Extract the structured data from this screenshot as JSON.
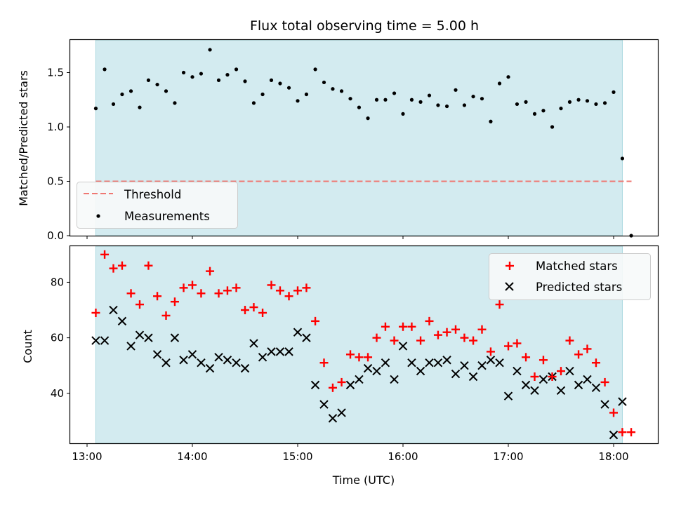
{
  "chart_data": {
    "title": "Flux total observing time = 5.00 h",
    "xlabel": "Time (UTC)",
    "colors": {
      "band": "#d3ebf0",
      "band_edge": "#a9d8de",
      "threshold": "#ef7873",
      "measurement": "#000000",
      "matched": "#ff0000",
      "predicted": "#000000"
    },
    "x_ticks": [
      "13:00",
      "14:00",
      "15:00",
      "16:00",
      "17:00",
      "18:00"
    ],
    "x_tick_hours": [
      13,
      14,
      15,
      16,
      17,
      18
    ],
    "xlim": [
      12.84,
      18.42
    ],
    "observing_band": [
      13.083,
      18.083
    ],
    "times": [
      13.083,
      13.167,
      13.25,
      13.333,
      13.417,
      13.5,
      13.583,
      13.667,
      13.75,
      13.833,
      13.917,
      14.0,
      14.083,
      14.167,
      14.25,
      14.333,
      14.417,
      14.5,
      14.583,
      14.667,
      14.75,
      14.833,
      14.917,
      15.0,
      15.083,
      15.167,
      15.25,
      15.333,
      15.417,
      15.5,
      15.583,
      15.667,
      15.75,
      15.833,
      15.917,
      16.0,
      16.083,
      16.167,
      16.25,
      16.333,
      16.417,
      16.5,
      16.583,
      16.667,
      16.75,
      16.833,
      16.917,
      17.0,
      17.083,
      17.167,
      17.25,
      17.333,
      17.417,
      17.5,
      17.583,
      17.667,
      17.75,
      17.833,
      17.917,
      18.0,
      18.083,
      18.167
    ],
    "top": {
      "ylabel": "Matched/Predicted stars",
      "y_ticks": [
        "0.0",
        "0.5",
        "1.0",
        "1.5"
      ],
      "y_tick_values": [
        0.0,
        0.5,
        1.0,
        1.5
      ],
      "ylim": [
        0.0,
        1.8
      ],
      "threshold": 0.5,
      "threshold_range": [
        13.083,
        18.17
      ],
      "series": [
        {
          "name": "Threshold",
          "type": "line"
        },
        {
          "name": "Measurements",
          "type": "scatter",
          "values": [
            1.17,
            1.53,
            1.21,
            1.3,
            1.33,
            1.18,
            1.43,
            1.39,
            1.33,
            1.22,
            1.5,
            1.46,
            1.49,
            1.71,
            1.43,
            1.48,
            1.53,
            1.42,
            1.22,
            1.3,
            1.43,
            1.4,
            1.36,
            1.24,
            1.3,
            1.53,
            1.41,
            1.35,
            1.33,
            1.26,
            1.18,
            1.08,
            1.25,
            1.25,
            1.31,
            1.12,
            1.25,
            1.23,
            1.29,
            1.2,
            1.19,
            1.34,
            1.2,
            1.28,
            1.26,
            1.05,
            1.4,
            1.46,
            1.21,
            1.23,
            1.12,
            1.15,
            1.0,
            1.17,
            1.23,
            1.25,
            1.24,
            1.21,
            1.22,
            1.32,
            0.71,
            0.0
          ]
        }
      ],
      "legend_position": "lower-left"
    },
    "bottom": {
      "ylabel": "Count",
      "y_ticks": [
        "40",
        "60",
        "80"
      ],
      "y_tick_values": [
        40,
        60,
        80
      ],
      "ylim": [
        22,
        93
      ],
      "series": [
        {
          "name": "Matched stars",
          "type": "scatter",
          "marker": "+",
          "values": [
            69,
            90,
            85,
            86,
            76,
            72,
            86,
            75,
            68,
            73,
            78,
            79,
            76,
            84,
            76,
            77,
            78,
            70,
            71,
            69,
            79,
            77,
            75,
            77,
            78,
            66,
            51,
            42,
            44,
            54,
            53,
            53,
            60,
            64,
            59,
            64,
            64,
            59,
            66,
            61,
            62,
            63,
            60,
            59,
            63,
            55,
            72,
            57,
            58,
            53,
            46,
            52,
            46,
            48,
            59,
            54,
            56,
            51,
            44,
            33,
            26,
            26
          ]
        },
        {
          "name": "Predicted stars",
          "type": "scatter",
          "marker": "x",
          "values": [
            59,
            59,
            70,
            66,
            57,
            61,
            60,
            54,
            51,
            60,
            52,
            54,
            51,
            49,
            53,
            52,
            51,
            49,
            58,
            53,
            55,
            55,
            55,
            62,
            60,
            43,
            36,
            31,
            33,
            43,
            45,
            49,
            48,
            51,
            45,
            57,
            51,
            48,
            51,
            51,
            52,
            47,
            50,
            46,
            50,
            52,
            51,
            39,
            48,
            43,
            41,
            45,
            46,
            41,
            48,
            43,
            45,
            42,
            36,
            25,
            37,
            null
          ]
        }
      ],
      "legend_position": "upper-right"
    }
  }
}
